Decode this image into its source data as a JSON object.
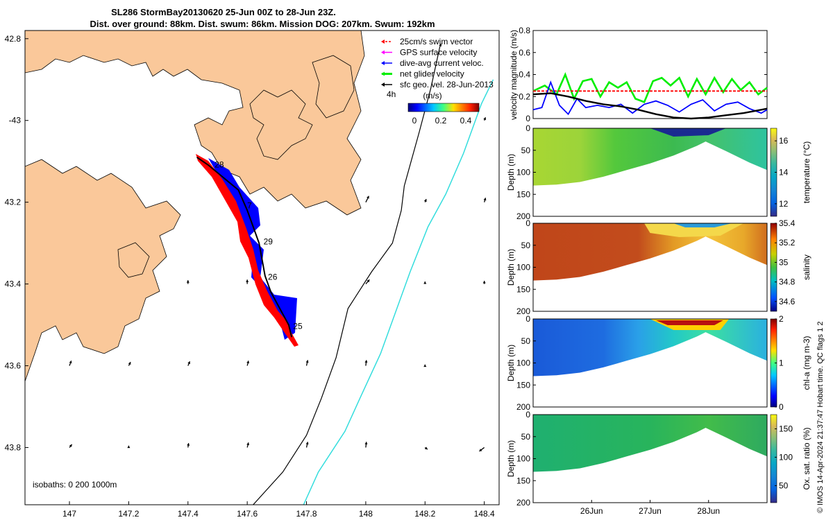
{
  "title_line1": "SL286 StormBay20130620 25-Jun 00Z to 28-Jun 23Z.",
  "title_line2": "Dist. over ground: 88km. Dist. swum: 86km. Mission DOG: 207km. Swum: 192km",
  "isobaths_label": "isobaths: 0   200  1000m",
  "footer_text": "© IMOS 14-Apr-2024 21:37:47 Hobart time. QC flags 1  2",
  "colors": {
    "land": "#fac89a",
    "blue_track": "#0000ff",
    "red_track": "#ff0000",
    "green": "#00ee00",
    "cyan": "#33dddd",
    "black": "#000000"
  },
  "chart_data": [
    {
      "type": "map",
      "xlim": [
        146.85,
        148.45
      ],
      "ylim": [
        -43.94,
        -42.78
      ],
      "xticks": [
        147,
        147.2,
        147.4,
        147.6,
        147.8,
        148,
        148.2,
        148.4
      ],
      "xtick_labels": [
        "147",
        "147.2",
        "147.4",
        "147.6",
        "147.8",
        "148",
        "148.2",
        "148.4"
      ],
      "yticks": [
        -42.8,
        -43,
        -43.2,
        -43.4,
        -43.6,
        -43.8
      ],
      "ytick_labels": [
        "42.8",
        "-43",
        "43.2",
        "43.4",
        "43.6",
        "43.8"
      ],
      "legend": {
        "items": [
          {
            "label": "25cm/s swim vector",
            "color": "#ff0000"
          },
          {
            "label": "GPS surface velocity",
            "color": "#ff00ff"
          },
          {
            "label": "dive-avg current veloc.",
            "color": "#0000ff"
          },
          {
            "label": "net glider velocity",
            "color": "#00ee00"
          },
          {
            "label": "sfc geo. vel. 28-Jun-2013",
            "color": "#000000"
          }
        ],
        "scale_label": "4h",
        "colorbar_title": "(m/s)",
        "colorbar_ticks": [
          "0",
          "0.2",
          "0.4"
        ]
      },
      "track": [
        [
          147.43,
          -43.09
        ],
        [
          147.47,
          -43.11
        ],
        [
          147.52,
          -43.14
        ],
        [
          147.57,
          -43.17
        ],
        [
          147.6,
          -43.22
        ],
        [
          147.62,
          -43.26
        ],
        [
          147.64,
          -43.3
        ],
        [
          147.65,
          -43.34
        ],
        [
          147.66,
          -43.38
        ],
        [
          147.68,
          -43.42
        ],
        [
          147.71,
          -43.46
        ],
        [
          147.74,
          -43.5
        ],
        [
          147.75,
          -43.53
        ]
      ],
      "day_labels": [
        {
          "text": "28",
          "lon": 147.49,
          "lat": -43.115
        },
        {
          "text": "7",
          "lon": 147.6,
          "lat": -43.215
        },
        {
          "text": "29",
          "lon": 147.655,
          "lat": -43.303
        },
        {
          "text": "26",
          "lon": 147.67,
          "lat": -43.39
        },
        {
          "text": "25",
          "lon": 147.755,
          "lat": -43.51
        }
      ],
      "isobath_200": [
        [
          147.62,
          -43.94
        ],
        [
          147.72,
          -43.86
        ],
        [
          147.8,
          -43.77
        ],
        [
          147.85,
          -43.68
        ],
        [
          147.9,
          -43.58
        ],
        [
          147.94,
          -43.46
        ],
        [
          148.02,
          -43.37
        ],
        [
          148.09,
          -43.3
        ],
        [
          148.12,
          -43.22
        ],
        [
          148.13,
          -43.16
        ],
        [
          148.18,
          -43.03
        ],
        [
          148.22,
          -42.92
        ],
        [
          148.25,
          -42.82
        ]
      ],
      "isobath_1000": [
        [
          147.79,
          -43.94
        ],
        [
          147.84,
          -43.86
        ],
        [
          147.93,
          -43.76
        ],
        [
          147.98,
          -43.68
        ],
        [
          148.05,
          -43.57
        ],
        [
          148.1,
          -43.47
        ],
        [
          148.15,
          -43.37
        ],
        [
          148.21,
          -43.26
        ],
        [
          148.27,
          -43.18
        ],
        [
          148.33,
          -43.08
        ],
        [
          148.39,
          -42.96
        ],
        [
          148.43,
          -42.9
        ]
      ],
      "vectors": [
        {
          "lon": 147.0,
          "lat": -43.6,
          "u": 0.03,
          "v": 0.08
        },
        {
          "lon": 147.2,
          "lat": -43.6,
          "u": 0.03,
          "v": 0.06
        },
        {
          "lon": 147.4,
          "lat": -43.6,
          "u": 0.03,
          "v": 0.07
        },
        {
          "lon": 147.6,
          "lat": -43.6,
          "u": 0.02,
          "v": 0.08
        },
        {
          "lon": 147.8,
          "lat": -43.6,
          "u": 0.02,
          "v": 0.09
        },
        {
          "lon": 148.0,
          "lat": -43.6,
          "u": 0.01,
          "v": 0.09
        },
        {
          "lon": 148.2,
          "lat": -43.6,
          "u": 0.0,
          "v": 0.02
        },
        {
          "lon": 147.0,
          "lat": -43.8,
          "u": 0.04,
          "v": 0.05
        },
        {
          "lon": 147.2,
          "lat": -43.8,
          "u": 0.0,
          "v": 0.03
        },
        {
          "lon": 147.4,
          "lat": -43.8,
          "u": 0.01,
          "v": 0.07
        },
        {
          "lon": 147.6,
          "lat": -43.8,
          "u": 0.02,
          "v": 0.08
        },
        {
          "lon": 147.8,
          "lat": -43.8,
          "u": 0.02,
          "v": 0.09
        },
        {
          "lon": 148.0,
          "lat": -43.8,
          "u": 0.01,
          "v": 0.09
        },
        {
          "lon": 148.2,
          "lat": -43.8,
          "u": 0.04,
          "v": -0.03
        },
        {
          "lon": 148.4,
          "lat": -43.8,
          "u": -0.08,
          "v": -0.06
        },
        {
          "lon": 147.4,
          "lat": -43.4,
          "u": 0.0,
          "v": 0.06
        },
        {
          "lon": 147.6,
          "lat": -43.4,
          "u": 0.0,
          "v": 0.07
        },
        {
          "lon": 148.0,
          "lat": -43.4,
          "u": 0.06,
          "v": 0.07
        },
        {
          "lon": 148.2,
          "lat": -43.4,
          "u": 0.0,
          "v": 0.04
        },
        {
          "lon": 148.4,
          "lat": -43.4,
          "u": 0.0,
          "v": 0.05
        },
        {
          "lon": 148.0,
          "lat": -43.2,
          "u": 0.05,
          "v": 0.1
        },
        {
          "lon": 148.2,
          "lat": -43.2,
          "u": 0.02,
          "v": 0.05
        },
        {
          "lon": 148.4,
          "lat": -43.2,
          "u": 0.02,
          "v": 0.07
        },
        {
          "lon": 148.4,
          "lat": -43.0,
          "u": 0.02,
          "v": 0.05
        },
        {
          "lon": 148.25,
          "lat": -42.82,
          "u": 0.02,
          "v": 0.05
        }
      ]
    },
    {
      "type": "line",
      "ylabel": "velocity magnitude (m/s)",
      "ylim": [
        0,
        0.8
      ],
      "yticks": [
        0,
        0.2,
        0.4,
        0.6,
        0.8
      ],
      "ytick_labels": [
        "0",
        "0.2",
        "0.4",
        "0.6",
        "0.8"
      ],
      "xlim": [
        25.0,
        29.0
      ],
      "series": [
        {
          "name": "net glider velocity",
          "color": "#00ee00",
          "x": [
            25.0,
            25.2,
            25.4,
            25.55,
            25.7,
            25.85,
            26.0,
            26.15,
            26.3,
            26.45,
            26.6,
            26.75,
            26.9,
            27.05,
            27.2,
            27.35,
            27.5,
            27.65,
            27.8,
            27.95,
            28.1,
            28.25,
            28.4,
            28.55,
            28.7,
            28.85,
            29.0
          ],
          "values": [
            0.25,
            0.3,
            0.22,
            0.4,
            0.18,
            0.34,
            0.36,
            0.2,
            0.33,
            0.28,
            0.33,
            0.18,
            0.15,
            0.34,
            0.37,
            0.3,
            0.37,
            0.2,
            0.36,
            0.22,
            0.37,
            0.24,
            0.36,
            0.26,
            0.33,
            0.22,
            0.28
          ]
        },
        {
          "name": "25cm/s swim vector",
          "color": "#ff0000",
          "x": [
            25.0,
            29.0
          ],
          "values": [
            0.25,
            0.25
          ]
        },
        {
          "name": "dive-avg current veloc.",
          "color": "#0000ff",
          "x": [
            25.0,
            25.15,
            25.3,
            25.45,
            25.6,
            25.75,
            25.9,
            26.1,
            26.3,
            26.5,
            26.7,
            26.9,
            27.1,
            27.3,
            27.5,
            27.7,
            27.9,
            28.1,
            28.3,
            28.5,
            28.7,
            28.9,
            29.0
          ],
          "values": [
            0.08,
            0.1,
            0.33,
            0.12,
            0.04,
            0.18,
            0.1,
            0.12,
            0.1,
            0.13,
            0.05,
            0.13,
            0.16,
            0.12,
            0.06,
            0.13,
            0.17,
            0.07,
            0.13,
            0.15,
            0.09,
            0.05,
            0.08
          ]
        },
        {
          "name": "sfc geo. vel.",
          "color": "#000000",
          "x": [
            25.0,
            25.3,
            25.6,
            25.9,
            26.2,
            26.5,
            26.8,
            27.1,
            27.4,
            27.7,
            28.0,
            28.3,
            28.6,
            28.9,
            29.0
          ],
          "values": [
            0.22,
            0.23,
            0.2,
            0.16,
            0.13,
            0.11,
            0.08,
            0.04,
            0.01,
            0.0,
            0.01,
            0.03,
            0.05,
            0.08,
            0.09
          ]
        }
      ]
    },
    {
      "type": "heatmap",
      "ylabel": "Depth (m)",
      "clabel": "temperature (°C)",
      "ylim": [
        0,
        200
      ],
      "yticks": [
        "0",
        "50",
        "100",
        "150",
        "200"
      ],
      "cticks": [
        "12",
        "14",
        "16"
      ],
      "clim": [
        11.2,
        16.8
      ],
      "colormap": "parula"
    },
    {
      "type": "heatmap",
      "ylabel": "Depth (m)",
      "clabel": "salinity",
      "ylim": [
        0,
        200
      ],
      "yticks": [
        "0",
        "50",
        "100",
        "150",
        "200"
      ],
      "cticks": [
        "34.6",
        "34.8",
        "35",
        "35.2",
        "35.4"
      ],
      "clim": [
        34.5,
        35.4
      ],
      "colormap": "parula"
    },
    {
      "type": "heatmap",
      "ylabel": "Depth (m)",
      "clabel": "chl-a (mg m-3)",
      "ylim": [
        0,
        200
      ],
      "yticks": [
        "0",
        "50",
        "100",
        "150",
        "200"
      ],
      "cticks": [
        "0",
        "1",
        "2"
      ],
      "clim": [
        0,
        2
      ],
      "colormap": "jet"
    },
    {
      "type": "heatmap",
      "ylabel": "Depth (m)",
      "clabel": "Ox. sat. ratio (%)",
      "ylim": [
        0,
        200
      ],
      "yticks": [
        "0",
        "50",
        "100",
        "150",
        "200"
      ],
      "cticks": [
        "50",
        "100",
        "150"
      ],
      "clim": [
        20,
        175
      ],
      "colormap": "parula",
      "xtick_labels": [
        "26Jun",
        "27Jun",
        "28Jun"
      ],
      "xticks": [
        26,
        27,
        28
      ]
    }
  ]
}
